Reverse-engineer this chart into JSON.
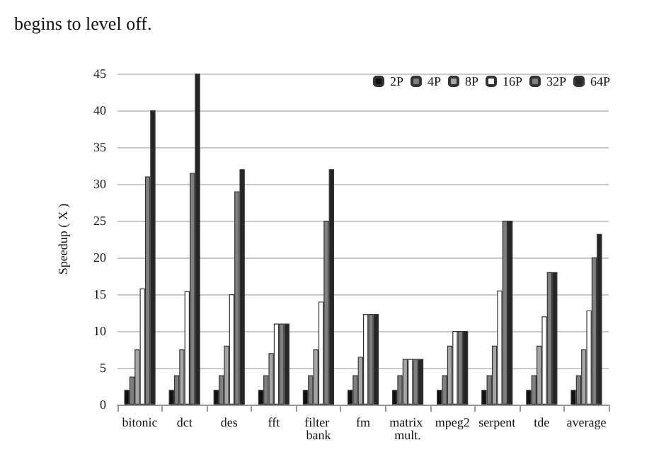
{
  "chart_data": {
    "type": "bar",
    "ylabel": "Speedup ( X )",
    "annotations": [
      "begins to level off."
    ],
    "categories": [
      "bitonic",
      "dct",
      "des",
      "fft",
      "filter bank",
      "fm",
      "matrix mult.",
      "mpeg2",
      "serpent",
      "tde",
      "average"
    ],
    "series": [
      {
        "name": "2P",
        "color": "#111111",
        "values": [
          2,
          2,
          2,
          2,
          2,
          2,
          2,
          2,
          2,
          2,
          2
        ]
      },
      {
        "name": "4P",
        "color": "#7f7f7f",
        "values": [
          3.8,
          4,
          4,
          4,
          4,
          4,
          4,
          4,
          4,
          4,
          4
        ]
      },
      {
        "name": "8P",
        "color": "#a6a6a6",
        "values": [
          7.5,
          7.5,
          8,
          7,
          7.5,
          6.5,
          6.2,
          8,
          8,
          8,
          7.5
        ]
      },
      {
        "name": "16P",
        "color": "#ffffff",
        "values": [
          15.8,
          15.4,
          15,
          11,
          14,
          12.3,
          6.2,
          10,
          15.5,
          12,
          12.8
        ]
      },
      {
        "name": "32P",
        "color": "#808080",
        "values": [
          31,
          31.5,
          29,
          11,
          25,
          12.3,
          6.2,
          10,
          25,
          18,
          20
        ]
      },
      {
        "name": "64P",
        "color": "#262626",
        "values": [
          40,
          45,
          32,
          11,
          32,
          12.3,
          6.2,
          10,
          25,
          18,
          23.2
        ]
      }
    ],
    "ylim": [
      0,
      45
    ],
    "yticks": [
      0,
      5,
      10,
      15,
      20,
      25,
      30,
      35,
      40,
      45
    ],
    "grid": "y",
    "legend": "top right"
  }
}
